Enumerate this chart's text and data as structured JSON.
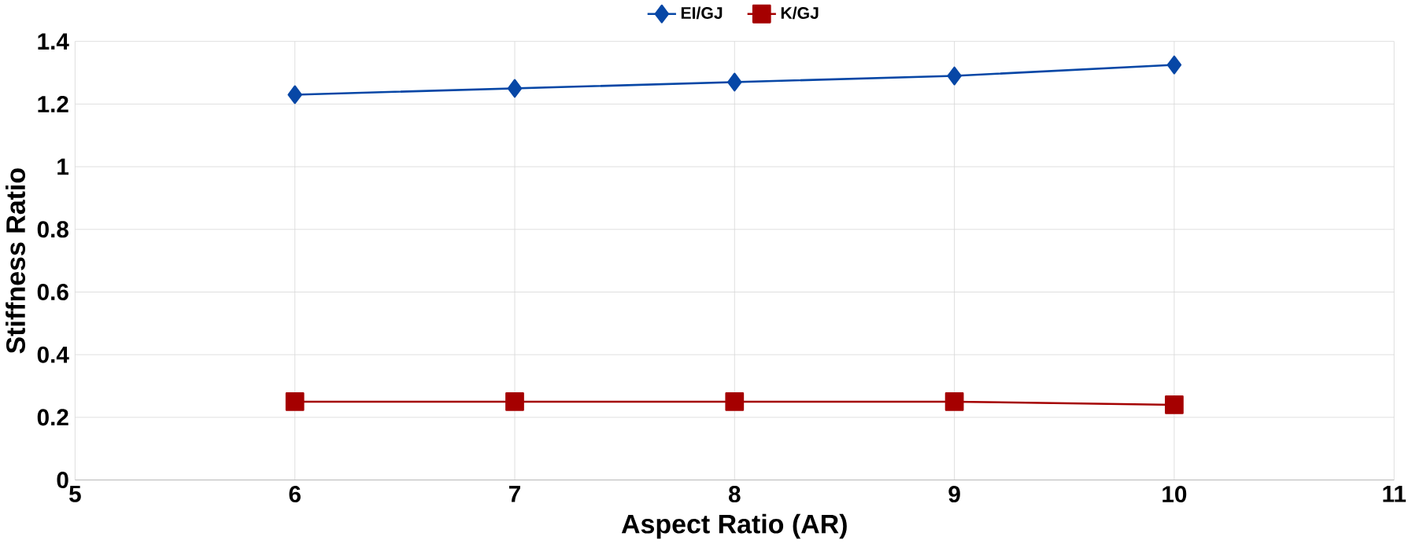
{
  "chart_data": {
    "type": "line",
    "xlabel": "Aspect Ratio (AR)",
    "ylabel": "Stiffness Ratio",
    "x": [
      6,
      7,
      8,
      9,
      10
    ],
    "series": [
      {
        "name": "EI/GJ",
        "color": "#0747a6",
        "marker": "diamond",
        "values": [
          1.23,
          1.25,
          1.27,
          1.29,
          1.325
        ]
      },
      {
        "name": "K/GJ",
        "color": "#a50000",
        "marker": "square",
        "values": [
          0.25,
          0.25,
          0.25,
          0.25,
          0.24
        ]
      }
    ],
    "xlim": [
      5,
      11
    ],
    "xticks": [
      5,
      6,
      7,
      8,
      9,
      10,
      11
    ],
    "ylim": [
      0,
      1.4
    ],
    "yticks": [
      0,
      0.2,
      0.4,
      0.6,
      0.8,
      1,
      1.2,
      1.4
    ],
    "grid": true,
    "legend": "top",
    "line_style": "solid"
  }
}
